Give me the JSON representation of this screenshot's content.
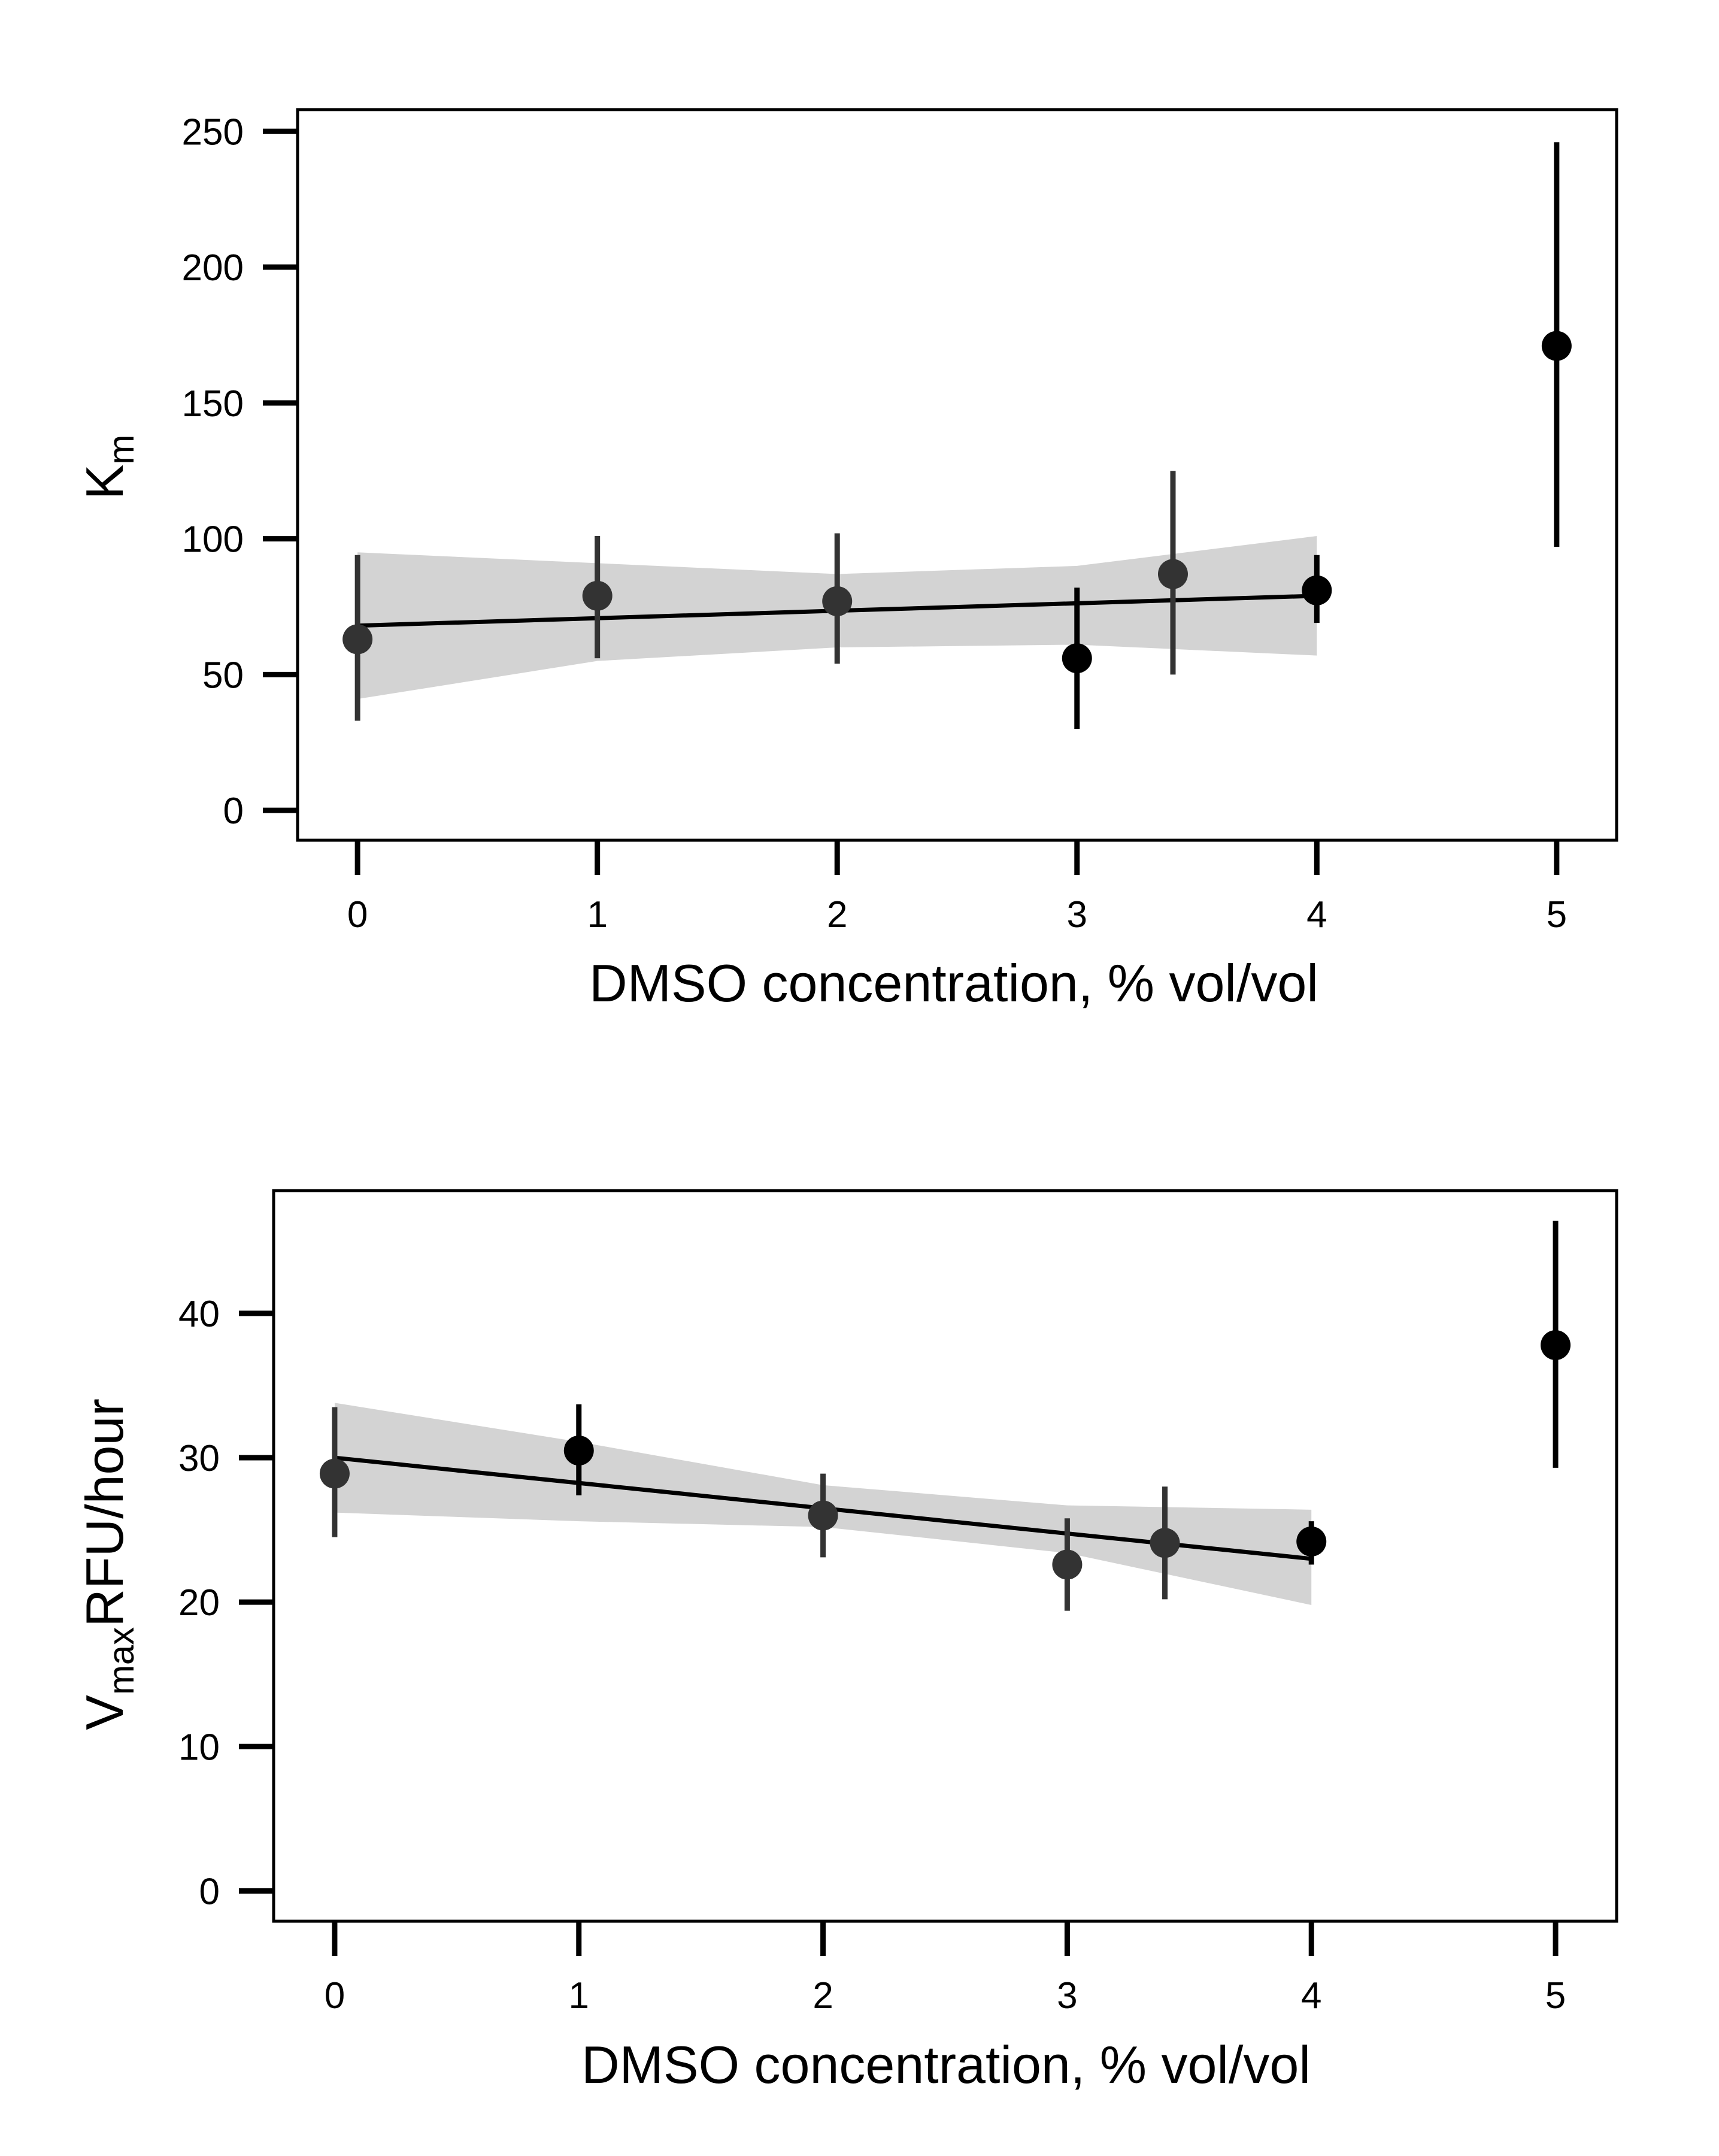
{
  "chart_data": [
    {
      "type": "scatter",
      "title": "",
      "xlabel": "DMSO concentration, % vol/vol",
      "ylabel": {
        "main": "K",
        "sub": "m",
        "suffix": ""
      },
      "xlim": [
        -0.25,
        5.25
      ],
      "ylim": [
        -11,
        258
      ],
      "xticks": [
        0,
        1,
        2,
        3,
        4,
        5
      ],
      "yticks": [
        0,
        50,
        100,
        150,
        200,
        250
      ],
      "grid": false,
      "points": [
        {
          "x": 0,
          "y": 63,
          "lo": 33,
          "hi": 94,
          "color": "#333333"
        },
        {
          "x": 1,
          "y": 79,
          "lo": 56,
          "hi": 101,
          "color": "#333333"
        },
        {
          "x": 2,
          "y": 77,
          "lo": 54,
          "hi": 102,
          "color": "#333333"
        },
        {
          "x": 3,
          "y": 56,
          "lo": 30,
          "hi": 82,
          "color": "#000000"
        },
        {
          "x": 3.4,
          "y": 87,
          "lo": 50,
          "hi": 125,
          "color": "#333333"
        },
        {
          "x": 4,
          "y": 81,
          "lo": 69,
          "hi": 94,
          "color": "#000000"
        },
        {
          "x": 5,
          "y": 171,
          "lo": 97,
          "hi": 246,
          "color": "#000000"
        }
      ],
      "fit_line": {
        "x": [
          0,
          4
        ],
        "y": [
          68,
          79
        ]
      },
      "ci_band": [
        {
          "x": 0,
          "lo": 41,
          "hi": 95
        },
        {
          "x": 1,
          "lo": 55,
          "hi": 91
        },
        {
          "x": 2,
          "lo": 60,
          "hi": 87
        },
        {
          "x": 3,
          "lo": 61,
          "hi": 90
        },
        {
          "x": 4,
          "lo": 57,
          "hi": 101
        }
      ]
    },
    {
      "type": "scatter",
      "title": "",
      "xlabel": "DMSO concentration, % vol/vol",
      "ylabel": {
        "main": "V",
        "sub": "max",
        "suffix": "RFU/hour"
      },
      "xlim": [
        -0.25,
        5.25
      ],
      "ylim": [
        -2.1,
        48.5
      ],
      "xticks": [
        0,
        1,
        2,
        3,
        4,
        5
      ],
      "yticks": [
        0,
        10,
        20,
        30,
        40
      ],
      "grid": false,
      "points": [
        {
          "x": 0,
          "y": 28.9,
          "lo": 24.5,
          "hi": 33.5,
          "color": "#333333"
        },
        {
          "x": 1,
          "y": 30.5,
          "lo": 27.4,
          "hi": 33.7,
          "color": "#000000"
        },
        {
          "x": 2,
          "y": 26.0,
          "lo": 23.1,
          "hi": 28.9,
          "color": "#333333"
        },
        {
          "x": 3,
          "y": 22.6,
          "lo": 19.4,
          "hi": 25.8,
          "color": "#333333"
        },
        {
          "x": 3.4,
          "y": 24.1,
          "lo": 20.2,
          "hi": 28.0,
          "color": "#333333"
        },
        {
          "x": 4,
          "y": 24.2,
          "lo": 22.6,
          "hi": 25.6,
          "color": "#000000"
        },
        {
          "x": 5,
          "y": 37.8,
          "lo": 29.3,
          "hi": 46.4,
          "color": "#000000"
        }
      ],
      "fit_line": {
        "x": [
          0,
          4
        ],
        "y": [
          30.0,
          23.0
        ]
      },
      "ci_band": [
        {
          "x": 0,
          "lo": 26.2,
          "hi": 33.8
        },
        {
          "x": 1,
          "lo": 25.6,
          "hi": 31.1
        },
        {
          "x": 2,
          "lo": 25.2,
          "hi": 28.1
        },
        {
          "x": 3,
          "lo": 23.4,
          "hi": 26.7
        },
        {
          "x": 4,
          "lo": 19.8,
          "hi": 26.4
        }
      ]
    }
  ]
}
